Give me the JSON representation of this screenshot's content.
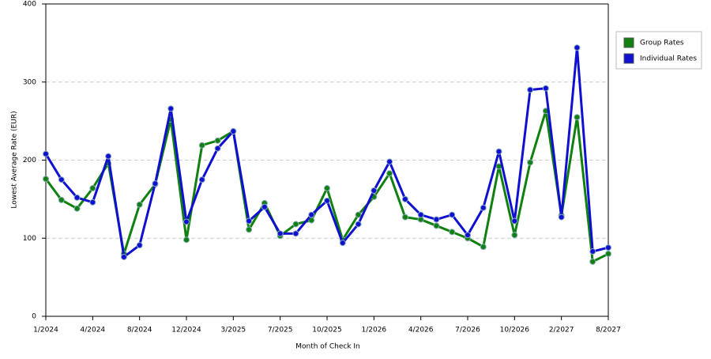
{
  "chart_data": {
    "type": "line",
    "x_label": "Month of Check In",
    "y_label": "Lowest Average Rate (EUR)",
    "categories": [
      "1/2024",
      null,
      null,
      "4/2024",
      null,
      null,
      "8/2024",
      null,
      null,
      "12/2024",
      null,
      null,
      "3/2025",
      null,
      null,
      "7/2025",
      null,
      null,
      "10/2025",
      null,
      null,
      "1/2026",
      null,
      null,
      "4/2026",
      null,
      null,
      "7/2026",
      null,
      null,
      "10/2026",
      null,
      null,
      "2/2027",
      null,
      null,
      "8/2027"
    ],
    "series": [
      {
        "name": "Group Rates",
        "color": "#108010",
        "values": [
          176,
          149,
          138,
          164,
          196,
          80,
          143,
          169,
          252,
          98,
          219,
          225,
          237,
          111,
          145,
          103,
          118,
          123,
          164,
          98,
          130,
          153,
          183,
          127,
          124,
          116,
          108,
          100,
          89,
          192,
          104,
          197,
          263,
          129,
          255,
          70,
          80
        ]
      },
      {
        "name": "Individual Rates",
        "color": "#1010d0",
        "values": [
          208,
          175,
          152,
          146,
          205,
          76,
          91,
          170,
          266,
          121,
          175,
          215,
          237,
          122,
          140,
          106,
          106,
          130,
          148,
          94,
          118,
          161,
          198,
          150,
          130,
          124,
          130,
          104,
          139,
          211,
          122,
          290,
          292,
          127,
          344,
          83,
          88
        ]
      }
    ],
    "ylim": [
      0,
      400
    ],
    "yticks": [
      0,
      100,
      200,
      300,
      400
    ],
    "grid": true,
    "legend": "right"
  }
}
